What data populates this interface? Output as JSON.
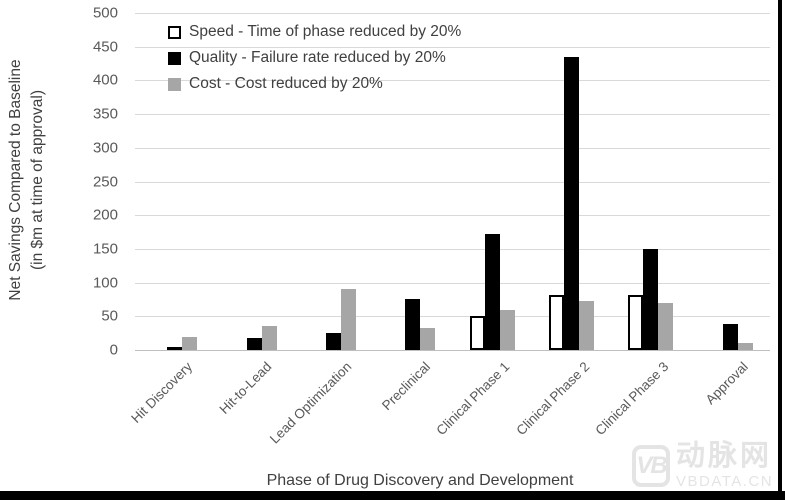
{
  "figure": {
    "y_axis_title_line1": "Net Savings Compared to Baseline",
    "y_axis_title_line2": "(in $m at time of approval)",
    "x_axis_title": "Phase of Drug Discovery and Development"
  },
  "chart_data": {
    "type": "bar",
    "title": "",
    "categories": [
      "Hit Discovery",
      "Hit-to-Lead",
      "Lead Optimization",
      "Preclinical",
      "Clinical Phase 1",
      "Clinical Phase 2",
      "Clinical Phase 3",
      "Approval"
    ],
    "series": [
      {
        "name": "Speed - Time of phase reduced by 20%",
        "fill": "#ffffff",
        "border": "#000000",
        "values": [
          0,
          0,
          0,
          0,
          50,
          82,
          82,
          0
        ]
      },
      {
        "name": "Quality - Failure rate reduced by 20%",
        "fill": "#000000",
        "border": "#000000",
        "values": [
          5,
          18,
          25,
          75,
          172,
          435,
          150,
          38
        ]
      },
      {
        "name": "Cost - Cost reduced by 20%",
        "fill": "#a6a6a6",
        "border": "#a6a6a6",
        "values": [
          20,
          35,
          91,
          32,
          59,
          72,
          70,
          10
        ]
      }
    ],
    "xlabel": "Phase of Drug Discovery and Development",
    "ylabel": "Net Savings Compared to Baseline (in $m at time of approval)",
    "ylim": [
      0,
      500
    ],
    "ytick_step": 50,
    "grid": true,
    "legend_position": "top-left-inside"
  },
  "watermark": {
    "logo": "VB",
    "name": "动脉网",
    "url": "VBDATA.CN"
  },
  "colors": {
    "gridline": "#d9d9d9",
    "baseline": "#bfbfbf",
    "axis_text": "#595959",
    "title_text": "#404040",
    "border": "#000000",
    "watermark": "#e4e4e4"
  }
}
